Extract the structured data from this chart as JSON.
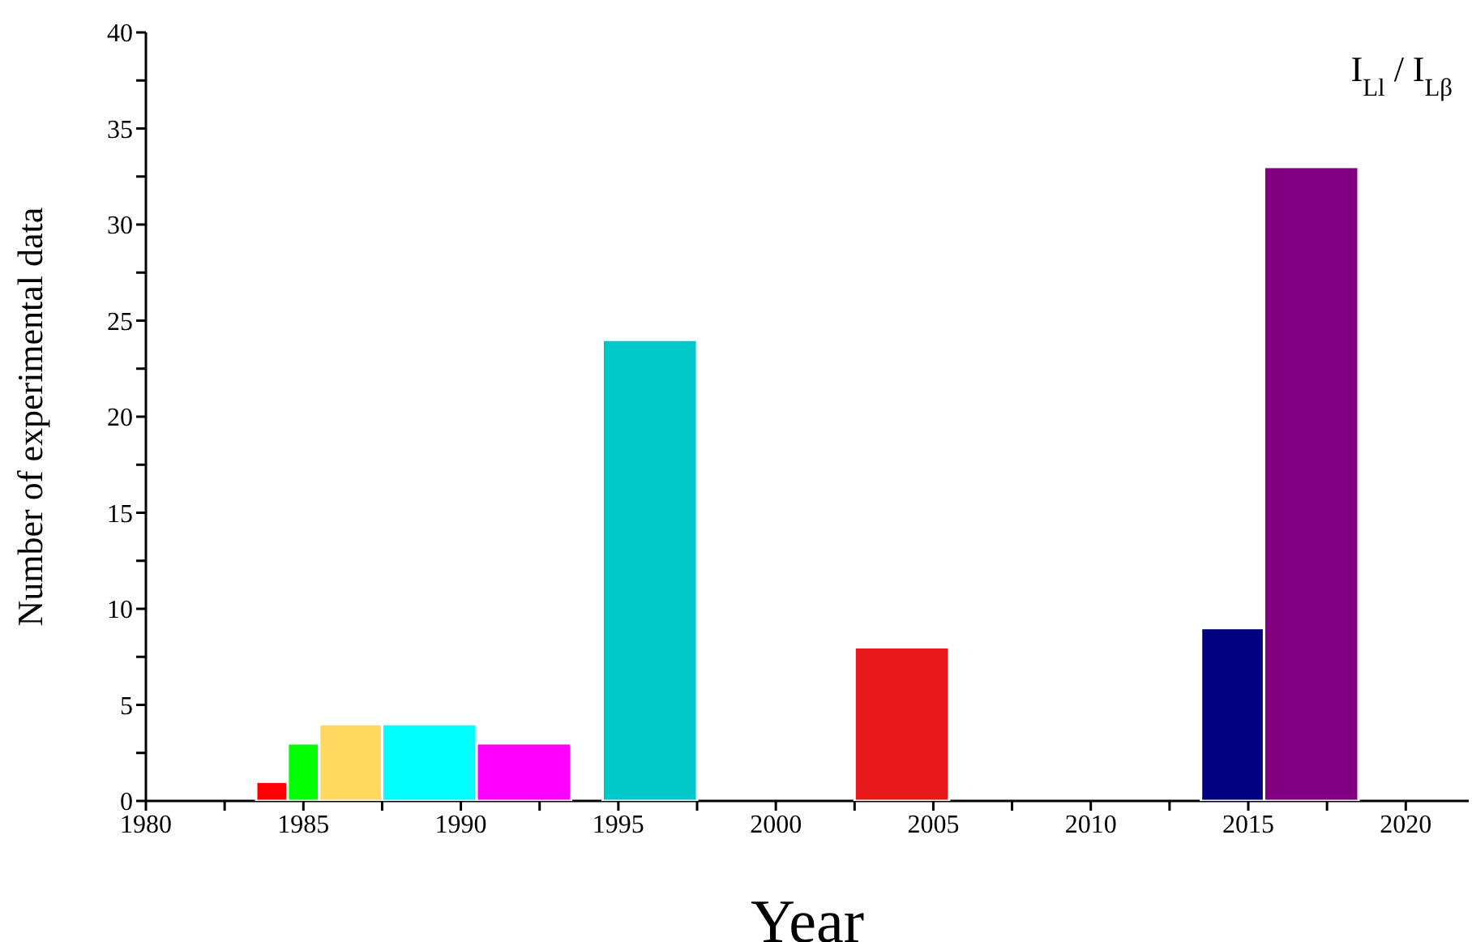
{
  "chart_data": {
    "type": "histogram",
    "xlabel": "Year",
    "ylabel": "Number of experimental data",
    "annotations": [
      "I$_{Ll}$ / I$_{Lβ}$"
    ],
    "bins": [
      1983.5,
      1984.5,
      1985.5,
      1987.5,
      1990.5,
      1993.5,
      1994.5,
      1997.5,
      2002.5,
      2005.5,
      2013.5,
      2015.5,
      2018.5
    ],
    "values": [
      1,
      3,
      4,
      4,
      3,
      0,
      24,
      0,
      8,
      0,
      9,
      33
    ],
    "colors": [
      "#ff0000",
      "#00ff00",
      "#ffd95e",
      "#00ffff",
      "#ff00ff",
      null,
      "#00c8c8",
      null,
      "#e61a1a",
      null,
      "#000080",
      "#800080"
    ],
    "xlim": [
      1980,
      2022
    ],
    "xticks": [
      1980,
      {
        "value": 1982.5,
        "label": null
      },
      1985,
      {
        "value": 1987.5,
        "label": null
      },
      1990,
      {
        "value": 1992.5,
        "label": null
      },
      1995,
      {
        "value": 1997.5,
        "label": null
      },
      2000,
      {
        "value": 2002.5,
        "label": null
      },
      2005,
      {
        "value": 2007.5,
        "label": null
      },
      2010,
      {
        "value": 2012.5,
        "label": null
      },
      2015,
      {
        "value": 2017.5,
        "label": null
      },
      2020
    ],
    "ylim": [
      0,
      40
    ],
    "yticks": [
      0,
      {
        "value": 2.5,
        "label": null
      },
      5,
      {
        "value": 7.5,
        "label": null
      },
      10,
      {
        "value": 12.5,
        "label": null
      },
      15,
      {
        "value": 17.5,
        "label": null
      },
      20,
      {
        "value": 22.5,
        "label": null
      },
      25,
      {
        "value": 27.5,
        "label": null
      },
      30,
      {
        "value": 32.5,
        "label": null
      },
      35,
      {
        "value": 37.5,
        "label": null
      },
      40
    ],
    "grid": false,
    "legend": false
  }
}
